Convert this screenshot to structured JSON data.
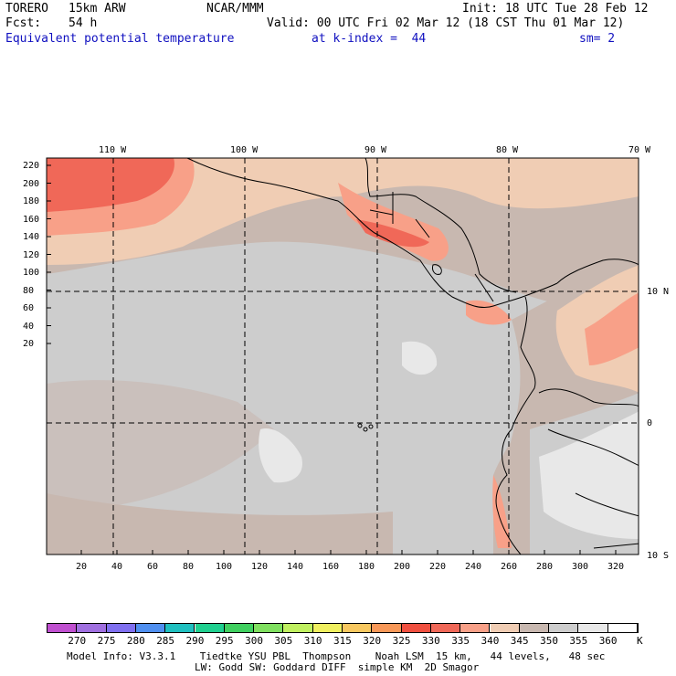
{
  "header": {
    "model_name": "TORERO",
    "resolution": "15km ARW",
    "center": "NCAR/MMM",
    "init": "Init: 18 UTC Tue 28 Feb 12",
    "fcst_label": "Fcst:",
    "fcst_value": "54 h",
    "valid": "Valid: 00 UTC Fri 02 Mar 12 (18 CST Thu 01 Mar 12)",
    "field": "Equivalent potential temperature",
    "level": "at k-index =  44",
    "smoothing": "sm= 2"
  },
  "map": {
    "lon_labels": [
      "110 W",
      "100 W",
      "90 W",
      "80 W",
      "70 W"
    ],
    "lat_labels": [
      "10 N",
      "0",
      "10 S"
    ],
    "y_ticks": [
      "220",
      "200",
      "180",
      "160",
      "140",
      "120",
      "100",
      "80",
      "60",
      "40",
      "20"
    ],
    "x_ticks": [
      "20",
      "40",
      "60",
      "80",
      "100",
      "120",
      "140",
      "160",
      "180",
      "200",
      "220",
      "240",
      "260",
      "280",
      "300",
      "320"
    ]
  },
  "colorbar": {
    "labels": [
      "270",
      "275",
      "280",
      "285",
      "290",
      "295",
      "300",
      "305",
      "310",
      "315",
      "320",
      "325",
      "330",
      "335",
      "340",
      "345",
      "350",
      "355",
      "360"
    ],
    "unit": "K",
    "colors": [
      "#c050d0",
      "#a070e0",
      "#8070f0",
      "#5090f0",
      "#20c0c0",
      "#20d090",
      "#40d060",
      "#80e060",
      "#c0f060",
      "#f0f060",
      "#f8c860",
      "#f89858",
      "#f05040",
      "#f06858",
      "#f8a088",
      "#f0cdb4",
      "#c8b8b0",
      "#cdcdcd",
      "#e8e8e8",
      "#ffffff"
    ]
  },
  "footer": {
    "line1": "Model Info: V3.3.1    Tiedtke YSU PBL  Thompson    Noah LSM  15 km,   44 levels,   48 sec",
    "line2": "LW: Godd SW: Goddard DIFF  simple KM  2D Smagor"
  }
}
